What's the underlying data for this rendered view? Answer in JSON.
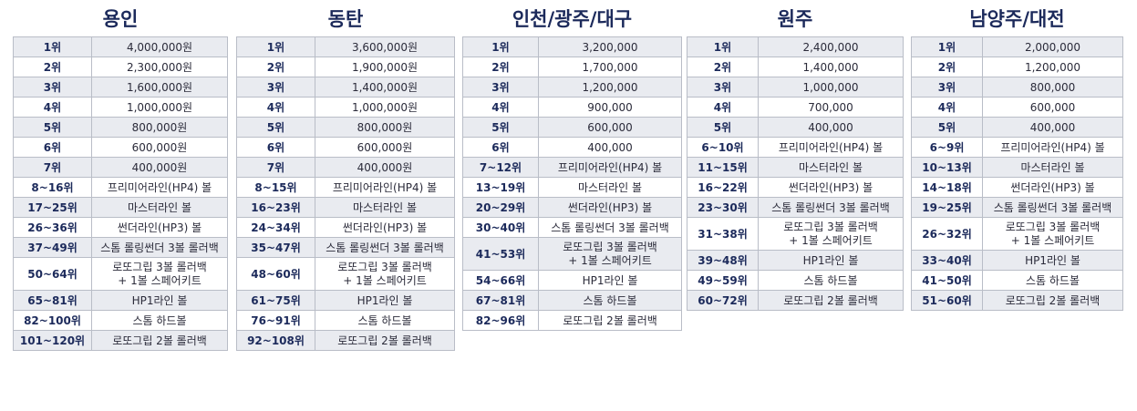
{
  "tables": [
    {
      "title": "용인",
      "rows": [
        {
          "rank": "1위",
          "prize": "4,000,000원"
        },
        {
          "rank": "2위",
          "prize": "2,300,000원"
        },
        {
          "rank": "3위",
          "prize": "1,600,000원"
        },
        {
          "rank": "4위",
          "prize": "1,000,000원"
        },
        {
          "rank": "5위",
          "prize": "800,000원"
        },
        {
          "rank": "6위",
          "prize": "600,000원"
        },
        {
          "rank": "7위",
          "prize": "400,000원"
        },
        {
          "rank": "8~16위",
          "prize": "프리미어라인(HP4) 볼"
        },
        {
          "rank": "17~25위",
          "prize": "마스터라인 볼"
        },
        {
          "rank": "26~36위",
          "prize": "썬더라인(HP3) 볼"
        },
        {
          "rank": "37~49위",
          "prize": "스톰 롤링썬더 3볼 롤러백"
        },
        {
          "rank": "50~64위",
          "prize": "로또그립 3볼 롤러백\n+ 1볼 스페어키트",
          "tall": true
        },
        {
          "rank": "65~81위",
          "prize": "HP1라인 볼"
        },
        {
          "rank": "82~100위",
          "prize": "스톰 하드볼"
        },
        {
          "rank": "101~120위",
          "prize": "로또그립 2볼 롤러백"
        }
      ]
    },
    {
      "title": "동탄",
      "rows": [
        {
          "rank": "1위",
          "prize": "3,600,000원"
        },
        {
          "rank": "2위",
          "prize": "1,900,000원"
        },
        {
          "rank": "3위",
          "prize": "1,400,000원"
        },
        {
          "rank": "4위",
          "prize": "1,000,000원"
        },
        {
          "rank": "5위",
          "prize": "800,000원"
        },
        {
          "rank": "6위",
          "prize": "600,000원"
        },
        {
          "rank": "7위",
          "prize": "400,000원"
        },
        {
          "rank": "8~15위",
          "prize": "프리미어라인(HP4) 볼"
        },
        {
          "rank": "16~23위",
          "prize": "마스터라인 볼"
        },
        {
          "rank": "24~34위",
          "prize": "썬더라인(HP3) 볼"
        },
        {
          "rank": "35~47위",
          "prize": "스톰 롤링썬더 3볼 롤러백"
        },
        {
          "rank": "48~60위",
          "prize": "로또그립 3볼 롤러백\n+ 1볼 스페어키트",
          "tall": true
        },
        {
          "rank": "61~75위",
          "prize": "HP1라인 볼"
        },
        {
          "rank": "76~91위",
          "prize": "스톰 하드볼"
        },
        {
          "rank": "92~108위",
          "prize": "로또그립 2볼 롤러백"
        }
      ]
    },
    {
      "title": "인천/광주/대구",
      "rows": [
        {
          "rank": "1위",
          "prize": "3,200,000"
        },
        {
          "rank": "2위",
          "prize": "1,700,000"
        },
        {
          "rank": "3위",
          "prize": "1,200,000"
        },
        {
          "rank": "4위",
          "prize": "900,000"
        },
        {
          "rank": "5위",
          "prize": "600,000"
        },
        {
          "rank": "6위",
          "prize": "400,000"
        },
        {
          "rank": "7~12위",
          "prize": "프리미어라인(HP4) 볼"
        },
        {
          "rank": "13~19위",
          "prize": "마스터라인 볼"
        },
        {
          "rank": "20~29위",
          "prize": "썬더라인(HP3) 볼"
        },
        {
          "rank": "30~40위",
          "prize": "스톰 롤링썬더 3볼 롤러백"
        },
        {
          "rank": "41~53위",
          "prize": "로또그립 3볼 롤러백\n+ 1볼 스페어키트",
          "tall": true
        },
        {
          "rank": "54~66위",
          "prize": "HP1라인 볼"
        },
        {
          "rank": "67~81위",
          "prize": "스톰 하드볼"
        },
        {
          "rank": "82~96위",
          "prize": "로또그립 2볼 롤러백"
        }
      ]
    },
    {
      "title": "원주",
      "rows": [
        {
          "rank": "1위",
          "prize": "2,400,000"
        },
        {
          "rank": "2위",
          "prize": "1,400,000"
        },
        {
          "rank": "3위",
          "prize": "1,000,000"
        },
        {
          "rank": "4위",
          "prize": "700,000"
        },
        {
          "rank": "5위",
          "prize": "400,000"
        },
        {
          "rank": "6~10위",
          "prize": "프리미어라인(HP4) 볼"
        },
        {
          "rank": "11~15위",
          "prize": "마스터라인 볼"
        },
        {
          "rank": "16~22위",
          "prize": "썬더라인(HP3) 볼"
        },
        {
          "rank": "23~30위",
          "prize": "스톰 롤링썬더 3볼 롤러백"
        },
        {
          "rank": "31~38위",
          "prize": "로또그립 3볼 롤러백\n+ 1볼 스페어키트",
          "tall": true
        },
        {
          "rank": "39~48위",
          "prize": "HP1라인 볼"
        },
        {
          "rank": "49~59위",
          "prize": "스톰 하드볼"
        },
        {
          "rank": "60~72위",
          "prize": "로또그립 2볼 롤러백"
        }
      ]
    },
    {
      "title": "남양주/대전",
      "rows": [
        {
          "rank": "1위",
          "prize": "2,000,000"
        },
        {
          "rank": "2위",
          "prize": "1,200,000"
        },
        {
          "rank": "3위",
          "prize": "800,000"
        },
        {
          "rank": "4위",
          "prize": "600,000"
        },
        {
          "rank": "5위",
          "prize": "400,000"
        },
        {
          "rank": "6~9위",
          "prize": "프리미어라인(HP4) 볼"
        },
        {
          "rank": "10~13위",
          "prize": "마스터라인 볼"
        },
        {
          "rank": "14~18위",
          "prize": "썬더라인(HP3) 볼"
        },
        {
          "rank": "19~25위",
          "prize": "스톰 롤링썬더 3볼 롤러백"
        },
        {
          "rank": "26~32위",
          "prize": "로또그립 3볼 롤러백\n+ 1볼 스페어키트",
          "tall": true
        },
        {
          "rank": "33~40위",
          "prize": "HP1라인 볼"
        },
        {
          "rank": "41~50위",
          "prize": "스톰 하드볼"
        },
        {
          "rank": "51~60위",
          "prize": "로또그립 2볼 롤러백"
        }
      ]
    }
  ]
}
